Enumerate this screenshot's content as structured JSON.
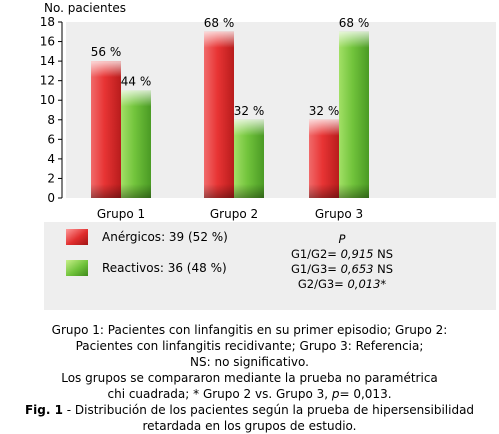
{
  "chart_data": {
    "type": "bar",
    "ylabel": "No. pacientes",
    "ylim": [
      0,
      18
    ],
    "yticks": [
      0,
      2,
      4,
      6,
      8,
      10,
      12,
      14,
      16,
      18
    ],
    "grid": false,
    "categories": [
      "Grupo 1",
      "Grupo 2",
      "Grupo 3"
    ],
    "series": [
      {
        "name": "Anérgicos: 39 (52 %)",
        "color": "#e03030",
        "values": [
          14,
          17,
          8
        ],
        "labels": [
          "56 %",
          "68 %",
          "32 %"
        ]
      },
      {
        "name": "Reactivos: 36 (48 %)",
        "color": "#6cc03a",
        "values": [
          11,
          8,
          17
        ],
        "labels": [
          "44 %",
          "32 %",
          "68 %"
        ]
      }
    ]
  },
  "stats": {
    "header": "P",
    "rows": [
      {
        "label": "G1/G2=",
        "value": "0,915",
        "suffix": " NS"
      },
      {
        "label": "G1/G3=",
        "value": "0,653",
        "suffix": " NS"
      },
      {
        "label": "G2/G3=",
        "value": "0,013",
        "suffix": "*"
      }
    ]
  },
  "caption": {
    "line1": "Grupo 1: Pacientes con linfangitis en su primer episodio; Grupo 2:",
    "line2": "Pacientes con linfangitis recidivante; Grupo 3: Referencia;",
    "line3": "NS: no significativo.",
    "line4": "Los grupos se compararon mediante la prueba no paramétrica",
    "line5_a": "chi cuadrada; * Grupo 2 vs. Grupo 3, ",
    "line5_p": "p=",
    "line5_b": " 0,013.",
    "fig_label": "Fig. 1",
    "fig_line1": " - Distribución de los pacientes según la prueba de hipersensibilidad",
    "fig_line2": "retardada en los grupos de estudio."
  }
}
